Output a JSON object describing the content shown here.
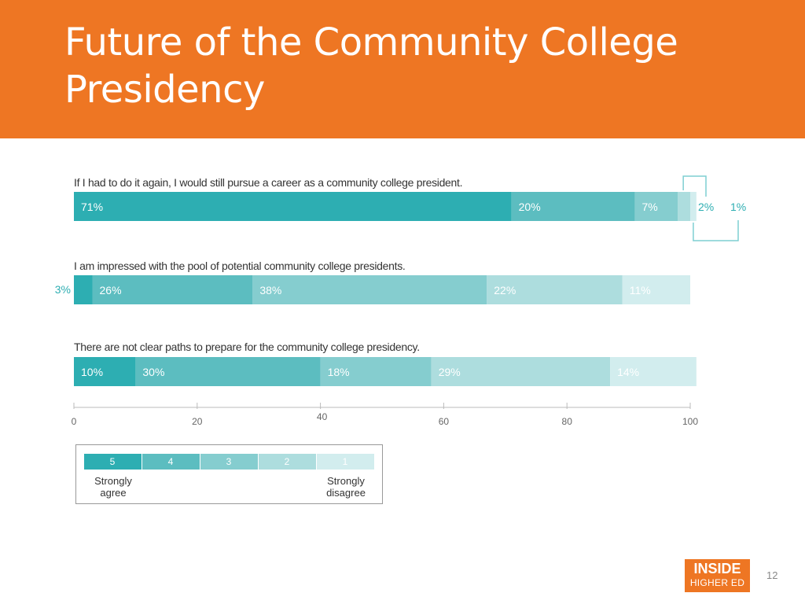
{
  "slide": {
    "title": "Future of the Community College Presidency",
    "page_number": "12",
    "logo": {
      "line1": "INSIDE",
      "line2": "HIGHER ED"
    }
  },
  "colors": {
    "header": "#EE7623",
    "scale": [
      "#2DAEB2",
      "#5CBDC0",
      "#85CDCF",
      "#ADDDDE",
      "#D2EDEE"
    ],
    "accent": "#2DAEB2"
  },
  "chart_data": {
    "type": "bar",
    "stacked": true,
    "orientation": "horizontal",
    "xlim": [
      0,
      100
    ],
    "xticks": [
      0,
      20,
      40,
      60,
      80,
      100
    ],
    "rows": [
      {
        "question": "If I had to do it again, I would still pursue a career as a community college president.",
        "values": [
          71,
          20,
          7,
          2,
          1
        ],
        "labels": [
          "71%",
          "20%",
          "7%",
          "2%",
          "1%"
        ]
      },
      {
        "question": "I am impressed with the pool of potential community college presidents.",
        "values": [
          3,
          26,
          38,
          22,
          11
        ],
        "labels": [
          "3%",
          "26%",
          "38%",
          "22%",
          "11%"
        ]
      },
      {
        "question": "There are not clear paths to prepare for the community college presidency.",
        "values": [
          10,
          30,
          18,
          29,
          14
        ],
        "labels": [
          "10%",
          "30%",
          "18%",
          "29%",
          "14%"
        ]
      }
    ],
    "legend": {
      "scale_labels": [
        "5",
        "4",
        "3",
        "2",
        "1"
      ],
      "low_label": "Strongly agree",
      "high_label": "Strongly disagree"
    }
  }
}
